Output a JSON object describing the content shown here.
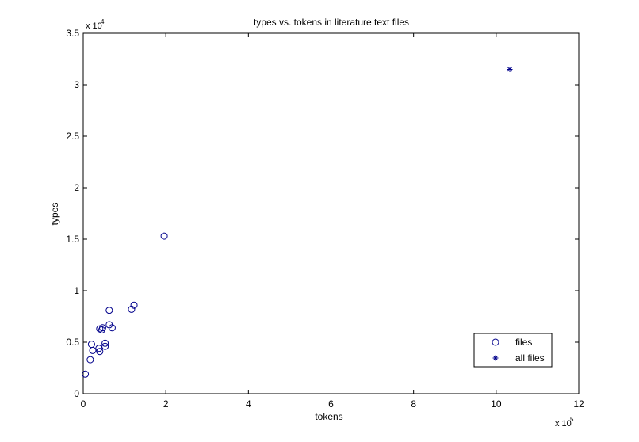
{
  "chart_data": {
    "type": "scatter",
    "title": "types vs. tokens in literature text files",
    "xlabel": "tokens",
    "ylabel": "types",
    "x_multiplier": "x 10",
    "x_multiplier_exp": "5",
    "y_multiplier": "x 10",
    "y_multiplier_exp": "4",
    "xlim": [
      0,
      12
    ],
    "ylim": [
      0,
      3.5
    ],
    "x_ticks": [
      0,
      2,
      4,
      6,
      8,
      10,
      12
    ],
    "x_tick_labels": [
      "0",
      "2",
      "4",
      "6",
      "8",
      "10",
      "12"
    ],
    "y_ticks": [
      0,
      0.5,
      1,
      1.5,
      2,
      2.5,
      3,
      3.5
    ],
    "y_tick_labels": [
      "0",
      "0.5",
      "1",
      "1.5",
      "2",
      "2.5",
      "3",
      "3.5"
    ],
    "grid": false,
    "legend_position": "bottom-right",
    "series": [
      {
        "name": "files",
        "marker": "circle",
        "color": "#00008b",
        "points": [
          [
            0.05,
            0.19
          ],
          [
            0.17,
            0.33
          ],
          [
            0.2,
            0.48
          ],
          [
            0.23,
            0.42
          ],
          [
            0.38,
            0.44
          ],
          [
            0.4,
            0.41
          ],
          [
            0.4,
            0.63
          ],
          [
            0.45,
            0.62
          ],
          [
            0.47,
            0.64
          ],
          [
            0.53,
            0.49
          ],
          [
            0.53,
            0.46
          ],
          [
            0.63,
            0.67
          ],
          [
            0.63,
            0.81
          ],
          [
            0.7,
            0.64
          ],
          [
            1.17,
            0.82
          ],
          [
            1.23,
            0.86
          ],
          [
            1.96,
            1.53
          ]
        ]
      },
      {
        "name": "all files",
        "marker": "star",
        "color": "#00008b",
        "points": [
          [
            10.33,
            3.15
          ]
        ]
      }
    ]
  }
}
